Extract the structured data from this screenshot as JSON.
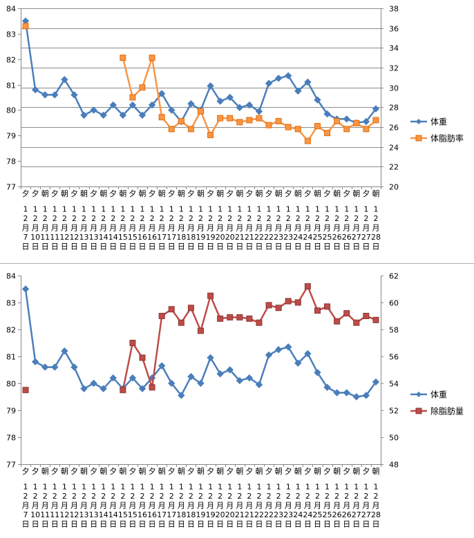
{
  "chart_data": [
    {
      "type": "line",
      "categories": [
        {
          "period": "夕",
          "month": "12",
          "day": "7"
        },
        {
          "period": "夕",
          "month": "12",
          "day": "10"
        },
        {
          "period": "朝",
          "month": "12",
          "day": "11"
        },
        {
          "period": "夕",
          "month": "12",
          "day": "11"
        },
        {
          "period": "朝",
          "month": "12",
          "day": "12"
        },
        {
          "period": "夕",
          "month": "12",
          "day": "12"
        },
        {
          "period": "朝",
          "month": "12",
          "day": "13"
        },
        {
          "period": "夕",
          "month": "12",
          "day": "13"
        },
        {
          "period": "朝",
          "month": "12",
          "day": "14"
        },
        {
          "period": "夕",
          "month": "12",
          "day": "14"
        },
        {
          "period": "朝",
          "month": "12",
          "day": "15"
        },
        {
          "period": "夕",
          "month": "12",
          "day": "15"
        },
        {
          "period": "朝",
          "month": "12",
          "day": "16"
        },
        {
          "period": "夕",
          "month": "12",
          "day": "16"
        },
        {
          "period": "朝",
          "month": "12",
          "day": "17"
        },
        {
          "period": "夕",
          "month": "12",
          "day": "17"
        },
        {
          "period": "朝",
          "month": "12",
          "day": "18"
        },
        {
          "period": "夕",
          "month": "12",
          "day": "18"
        },
        {
          "period": "朝",
          "month": "12",
          "day": "19"
        },
        {
          "period": "夕",
          "month": "12",
          "day": "19"
        },
        {
          "period": "朝",
          "month": "12",
          "day": "20"
        },
        {
          "period": "夕",
          "month": "12",
          "day": "20"
        },
        {
          "period": "朝",
          "month": "12",
          "day": "21"
        },
        {
          "period": "夕",
          "month": "12",
          "day": "21"
        },
        {
          "period": "朝",
          "month": "12",
          "day": "22"
        },
        {
          "period": "夕",
          "month": "12",
          "day": "22"
        },
        {
          "period": "朝",
          "month": "12",
          "day": "23"
        },
        {
          "period": "夕",
          "month": "12",
          "day": "23"
        },
        {
          "period": "朝",
          "month": "12",
          "day": "24"
        },
        {
          "period": "夕",
          "month": "12",
          "day": "24"
        },
        {
          "period": "朝",
          "month": "12",
          "day": "25"
        },
        {
          "period": "夕",
          "month": "12",
          "day": "25"
        },
        {
          "period": "朝",
          "month": "12",
          "day": "26"
        },
        {
          "period": "夕",
          "month": "12",
          "day": "26"
        },
        {
          "period": "朝",
          "month": "12",
          "day": "27"
        },
        {
          "period": "夕",
          "month": "12",
          "day": "27"
        },
        {
          "period": "朝",
          "month": "12",
          "day": "28"
        }
      ],
      "month_unit": "月",
      "day_unit": "日",
      "title": "",
      "xlabel": "",
      "ylabel": "",
      "ylim": [
        77,
        84
      ],
      "y_ticks": [
        77,
        78,
        79,
        80,
        81,
        82,
        83,
        84
      ],
      "y2lim": [
        20,
        38
      ],
      "y2_ticks": [
        20,
        22,
        24,
        26,
        28,
        30,
        32,
        34,
        36,
        38
      ],
      "grid": true,
      "legend_position": "right",
      "series": [
        {
          "name": "体重",
          "axis": "left",
          "color": "#4a7ebb",
          "marker": "diamond",
          "values": [
            83.5,
            80.8,
            80.6,
            80.6,
            81.2,
            80.6,
            79.8,
            80.0,
            79.8,
            80.2,
            79.8,
            80.2,
            79.8,
            80.2,
            80.65,
            80.0,
            79.55,
            80.25,
            80.0,
            80.95,
            80.35,
            80.5,
            80.1,
            80.2,
            79.95,
            81.05,
            81.25,
            81.35,
            80.75,
            81.1,
            80.4,
            79.85,
            79.65,
            79.65,
            79.5,
            79.55,
            80.05
          ]
        },
        {
          "name": "体脂肪率",
          "axis": "right",
          "color": "#f79646",
          "marker": "square",
          "values": [
            36.2,
            null,
            null,
            null,
            null,
            null,
            null,
            null,
            null,
            null,
            33.0,
            29.0,
            30.0,
            33.0,
            27.0,
            25.8,
            26.6,
            25.8,
            27.6,
            25.2,
            26.9,
            26.9,
            26.5,
            26.7,
            26.9,
            26.2,
            26.6,
            26.0,
            25.8,
            24.6,
            26.1,
            25.4,
            26.6,
            25.8,
            26.4,
            25.8,
            26.7
          ]
        }
      ]
    },
    {
      "type": "line",
      "categories_ref": "same as chart 1",
      "title": "",
      "xlabel": "",
      "ylabel": "",
      "ylim": [
        77,
        84
      ],
      "y_ticks": [
        77,
        78,
        79,
        80,
        81,
        82,
        83,
        84
      ],
      "y2lim": [
        48,
        62
      ],
      "y2_ticks": [
        48,
        50,
        52,
        54,
        56,
        58,
        60,
        62
      ],
      "grid": false,
      "legend_position": "right",
      "series": [
        {
          "name": "体重",
          "axis": "left",
          "color": "#4a7ebb",
          "marker": "diamond",
          "values": [
            83.5,
            80.8,
            80.6,
            80.6,
            81.2,
            80.6,
            79.8,
            80.0,
            79.8,
            80.2,
            79.8,
            80.2,
            79.8,
            80.2,
            80.65,
            80.0,
            79.55,
            80.25,
            80.0,
            80.95,
            80.35,
            80.5,
            80.1,
            80.2,
            79.95,
            81.05,
            81.25,
            81.35,
            80.75,
            81.1,
            80.4,
            79.85,
            79.65,
            79.65,
            79.5,
            79.55,
            80.05
          ]
        },
        {
          "name": "除脂肪量",
          "axis": "right",
          "color": "#be4b48",
          "marker": "square",
          "values": [
            53.5,
            null,
            null,
            null,
            null,
            null,
            null,
            null,
            null,
            null,
            53.5,
            57.0,
            55.9,
            53.7,
            59.0,
            59.5,
            58.5,
            59.6,
            57.9,
            60.5,
            58.8,
            58.9,
            58.9,
            58.8,
            58.5,
            59.8,
            59.6,
            60.1,
            60.0,
            61.2,
            59.4,
            59.7,
            58.6,
            59.2,
            58.5,
            59.0,
            58.7
          ]
        }
      ]
    }
  ]
}
